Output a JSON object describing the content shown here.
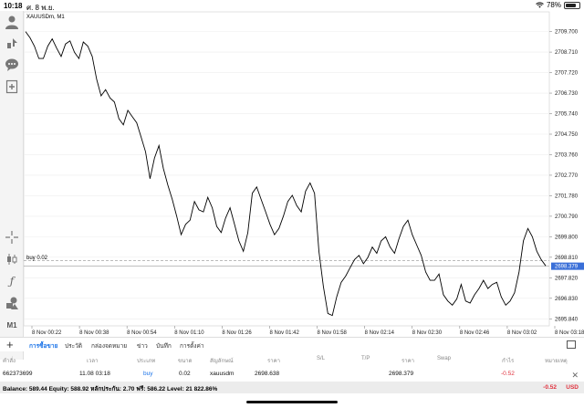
{
  "status_bar": {
    "time": "10:18",
    "date": "ศ. 8 พ.ย.",
    "battery": "78%",
    "battery_level": 0.78
  },
  "chart_data": {
    "type": "line",
    "symbol": "XAUUSDm, M1",
    "y_ticks": [
      "2709.700",
      "2708.710",
      "2707.720",
      "2706.730",
      "2705.740",
      "2704.750",
      "2703.760",
      "2702.770",
      "2701.780",
      "2700.790",
      "2699.800",
      "2698.810",
      "2697.820",
      "2696.830",
      "2695.840"
    ],
    "ylim": [
      2695.5,
      2710.3
    ],
    "x_ticks": [
      "8 Nov 00:22",
      "8 Nov 00:38",
      "8 Nov 00:54",
      "8 Nov 01:10",
      "8 Nov 01:26",
      "8 Nov 01:42",
      "8 Nov 01:58",
      "8 Nov 02:14",
      "8 Nov 02:30",
      "8 Nov 02:46",
      "8 Nov 03:02",
      "8 Nov 03:18"
    ],
    "buy_line": {
      "label": "buy 0.02",
      "price": 2698.638
    },
    "current_price": {
      "label": "2698.379",
      "price": 2698.379
    },
    "y": [
      2709.7,
      2709.4,
      2709.0,
      2708.4,
      2708.4,
      2709.0,
      2709.35,
      2708.9,
      2708.5,
      2709.1,
      2709.25,
      2708.7,
      2708.4,
      2709.2,
      2709.0,
      2708.5,
      2707.4,
      2706.6,
      2706.9,
      2706.5,
      2706.3,
      2705.5,
      2705.2,
      2705.9,
      2705.6,
      2705.3,
      2704.6,
      2703.9,
      2702.6,
      2703.6,
      2704.2,
      2703.1,
      2702.3,
      2701.6,
      2700.8,
      2699.9,
      2700.4,
      2700.6,
      2701.5,
      2701.1,
      2701.0,
      2701.7,
      2701.2,
      2700.3,
      2700.0,
      2700.7,
      2701.2,
      2700.4,
      2699.6,
      2699.1,
      2700.0,
      2701.9,
      2702.2,
      2701.6,
      2701.0,
      2700.4,
      2699.9,
      2700.2,
      2700.8,
      2701.5,
      2701.8,
      2701.3,
      2701.0,
      2702.0,
      2702.4,
      2701.9,
      2699.1,
      2697.4,
      2696.1,
      2696.0,
      2696.9,
      2697.6,
      2697.9,
      2698.3,
      2698.7,
      2698.9,
      2698.5,
      2698.8,
      2699.3,
      2699.0,
      2699.6,
      2699.8,
      2699.3,
      2699.0,
      2699.7,
      2700.3,
      2700.6,
      2699.9,
      2699.4,
      2698.9,
      2698.1,
      2697.7,
      2697.7,
      2698.0,
      2697.0,
      2696.7,
      2696.5,
      2696.8,
      2697.5,
      2696.7,
      2696.6,
      2697.0,
      2697.3,
      2697.7,
      2697.3,
      2697.5,
      2697.6,
      2696.9,
      2696.5,
      2696.7,
      2697.1,
      2698.1,
      2699.6,
      2700.2,
      2699.8,
      2699.1,
      2698.7,
      2698.4
    ]
  },
  "left_toolbar": {
    "m1_label": "M1"
  },
  "tabs": [
    "การซื้อขาย",
    "ประวัติ",
    "กล่องจดหมาย",
    "ข่าว",
    "บันทึก",
    "การตั้งค่า"
  ],
  "table": {
    "headers": [
      "คำสั่ง",
      "เวลา",
      "ประเภท",
      "ขนาด",
      "สัญลักษณ์",
      "ราคา",
      "S/L",
      "T/P",
      "ราคา",
      "Swap",
      "กำไร",
      "หมายเหตุ"
    ],
    "row": {
      "order": "662373699",
      "time": "11.08 03:18",
      "type": "buy",
      "size": "0.02",
      "symbol": "xauusdm",
      "open_price": "2698.638",
      "current_price": "2698.379",
      "profit": "-0.52"
    }
  },
  "balance": {
    "text": "Balance: 589.44 Equity: 588.92 หลักประกัน: 2.70 ฟรี: 586.22 Level: 21 822.86%",
    "profit": "-0.52",
    "currency": "USD"
  },
  "colors": {
    "accent": "#1a73e8",
    "loss": "#e0323e",
    "price_tag": "#3a6fd8"
  }
}
